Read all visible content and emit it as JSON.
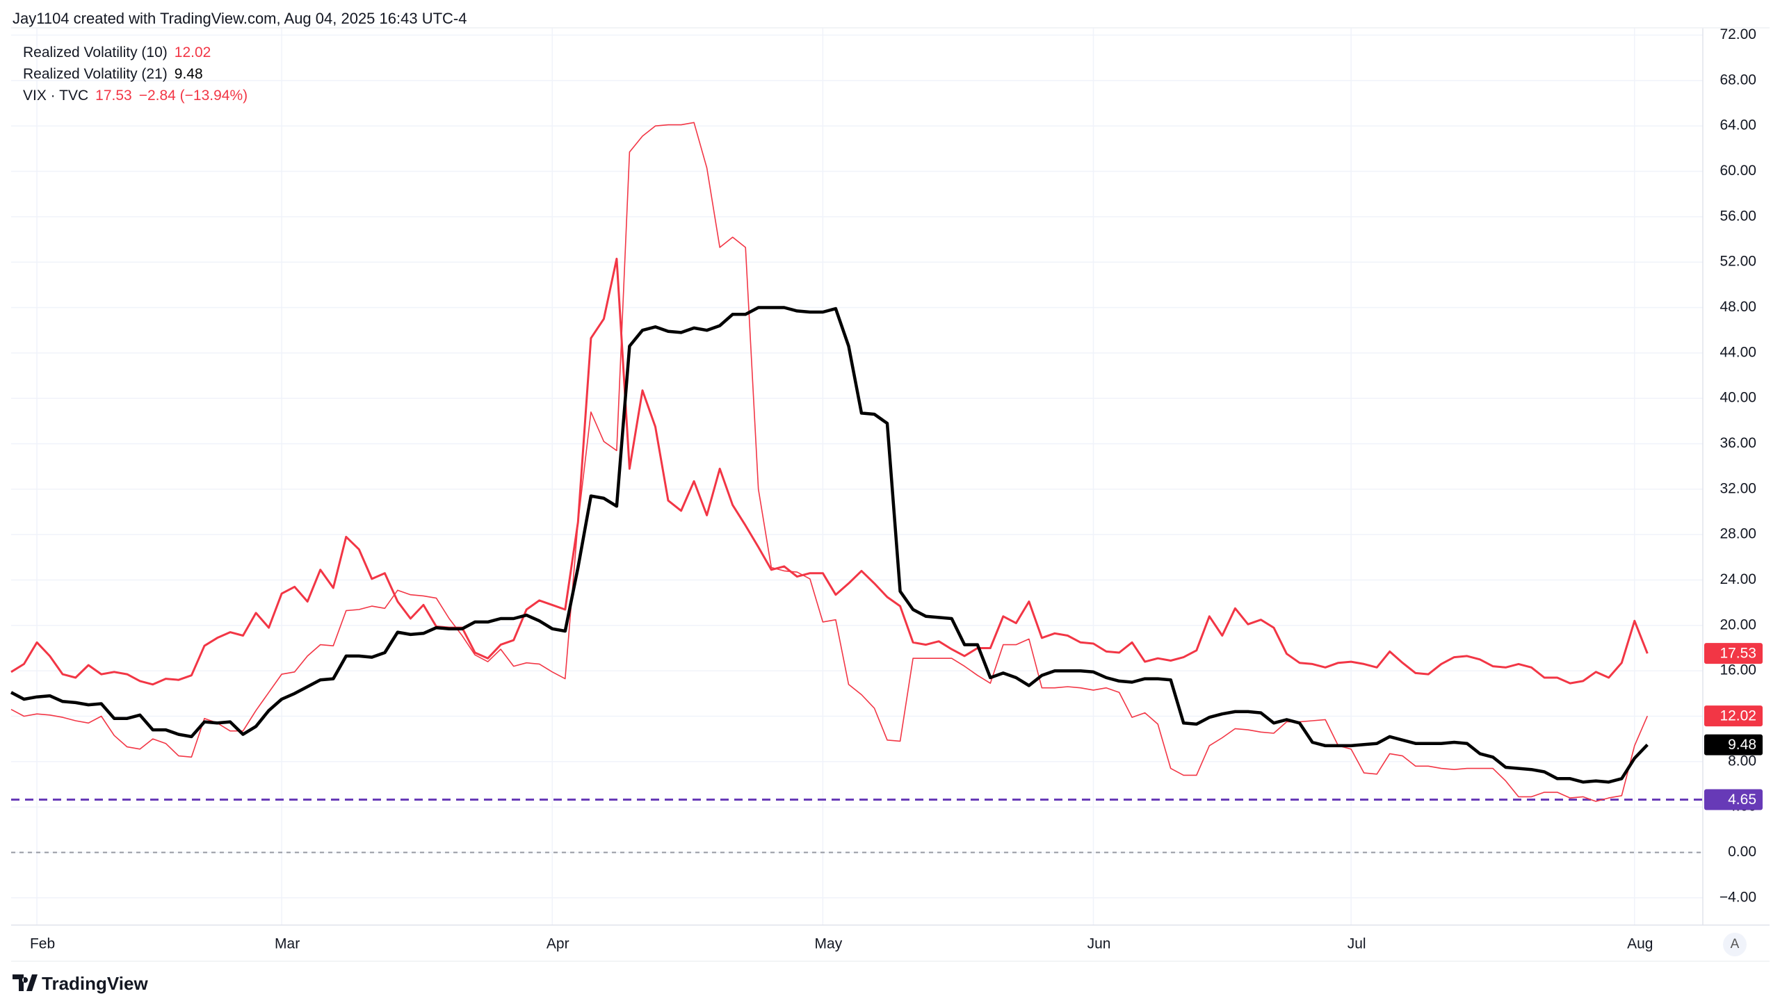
{
  "header": {
    "title": "Jay1104 created with TradingView.com, Aug 04, 2025 16:43 UTC-4"
  },
  "footer": {
    "brand": "TradingView"
  },
  "auto_scale_button": "A",
  "chart_data": {
    "type": "line",
    "categories": [
      null,
      null,
      "Feb",
      null,
      null,
      null,
      null,
      null,
      null,
      null,
      null,
      null,
      null,
      null,
      null,
      null,
      null,
      null,
      null,
      null,
      null,
      "Mar",
      null,
      null,
      null,
      null,
      null,
      null,
      null,
      null,
      null,
      null,
      null,
      null,
      null,
      null,
      null,
      null,
      null,
      null,
      null,
      null,
      "Apr",
      null,
      null,
      null,
      null,
      null,
      null,
      null,
      null,
      null,
      null,
      null,
      null,
      null,
      null,
      null,
      null,
      null,
      null,
      null,
      null,
      "May",
      null,
      null,
      null,
      null,
      null,
      null,
      null,
      null,
      null,
      null,
      null,
      null,
      null,
      null,
      null,
      null,
      null,
      null,
      null,
      null,
      "Jun",
      null,
      null,
      null,
      null,
      null,
      null,
      null,
      null,
      null,
      null,
      null,
      null,
      null,
      null,
      null,
      null,
      null,
      null,
      null,
      "Jul",
      null,
      null,
      null,
      null,
      null,
      null,
      null,
      null,
      null,
      null,
      null,
      null,
      null,
      null,
      null,
      null,
      null,
      null,
      null,
      null,
      null,
      "Aug",
      null
    ],
    "series": [
      {
        "name": "Realized Volatility (10)",
        "color": "#f23645",
        "values": [
          12.6,
          12.0,
          12.2,
          12.1,
          11.9,
          11.6,
          11.4,
          12.0,
          10.3,
          9.3,
          9.1,
          10.0,
          9.6,
          8.5,
          8.4,
          11.8,
          11.4,
          10.7,
          10.7,
          12.5,
          14.1,
          15.7,
          15.9,
          17.3,
          18.3,
          18.2,
          21.3,
          21.4,
          21.7,
          21.5,
          23.1,
          22.7,
          22.6,
          22.4,
          20.6,
          19.1,
          17.4,
          16.8,
          17.9,
          16.4,
          16.7,
          16.6,
          15.9,
          15.3,
          29.1,
          38.8,
          36.2,
          35.4,
          61.7,
          63.1,
          64.0,
          64.1,
          64.1,
          64.3,
          60.3,
          53.3,
          54.2,
          53.3,
          32.0,
          25.1,
          24.8,
          24.7,
          24.1,
          20.3,
          20.5,
          14.8,
          13.9,
          12.7,
          9.9,
          9.8,
          17.1,
          17.1,
          17.1,
          17.1,
          16.4,
          15.6,
          14.9,
          18.3,
          18.3,
          18.8,
          14.5,
          14.5,
          14.6,
          14.5,
          14.3,
          14.5,
          14.1,
          11.9,
          12.3,
          11.3,
          7.4,
          6.8,
          6.8,
          9.4,
          10.1,
          10.9,
          10.8,
          10.6,
          10.5,
          11.5,
          11.5,
          11.6,
          11.7,
          9.4,
          9.1,
          7.0,
          6.9,
          8.7,
          8.5,
          7.6,
          7.6,
          7.4,
          7.3,
          7.4,
          7.4,
          7.4,
          6.3,
          4.9,
          4.9,
          5.3,
          5.3,
          4.8,
          4.9,
          4.5,
          4.8,
          5.0,
          9.4,
          12.02
        ]
      },
      {
        "name": "Realized Volatility (21)",
        "color": "#000000",
        "values": [
          14.1,
          13.5,
          13.7,
          13.8,
          13.3,
          13.2,
          13.0,
          13.1,
          11.8,
          11.8,
          12.1,
          10.8,
          10.8,
          10.4,
          10.2,
          11.5,
          11.4,
          11.5,
          10.4,
          11.1,
          12.5,
          13.5,
          14.0,
          14.6,
          15.2,
          15.3,
          17.3,
          17.3,
          17.2,
          17.6,
          19.4,
          19.2,
          19.3,
          19.8,
          19.7,
          19.7,
          20.3,
          20.3,
          20.6,
          20.6,
          20.9,
          20.4,
          19.7,
          19.5,
          25.1,
          31.4,
          31.2,
          30.5,
          44.6,
          46.0,
          46.3,
          45.9,
          45.8,
          46.2,
          46.0,
          46.4,
          47.4,
          47.4,
          48.0,
          48.0,
          48.0,
          47.7,
          47.6,
          47.6,
          47.9,
          44.6,
          38.7,
          38.6,
          37.8,
          23.0,
          21.4,
          20.8,
          20.7,
          20.6,
          18.3,
          18.3,
          15.4,
          15.8,
          15.4,
          14.7,
          15.6,
          16.0,
          16.0,
          16.0,
          15.9,
          15.4,
          15.1,
          15.0,
          15.3,
          15.3,
          15.2,
          11.4,
          11.3,
          11.9,
          12.2,
          12.4,
          12.4,
          12.3,
          11.4,
          11.7,
          11.4,
          9.7,
          9.4,
          9.4,
          9.4,
          9.5,
          9.6,
          10.2,
          9.9,
          9.6,
          9.6,
          9.6,
          9.7,
          9.6,
          8.7,
          8.4,
          7.5,
          7.4,
          7.3,
          7.1,
          6.5,
          6.5,
          6.2,
          6.3,
          6.2,
          6.5,
          8.3,
          9.48
        ]
      },
      {
        "name": "VIX · TVC",
        "color": "#f23645",
        "change": "−2.84 (−13.94%)",
        "values": [
          15.9,
          16.6,
          18.5,
          17.3,
          15.7,
          15.4,
          16.5,
          15.7,
          15.9,
          15.7,
          15.1,
          14.8,
          15.3,
          15.2,
          15.6,
          18.2,
          18.9,
          19.4,
          19.1,
          21.1,
          19.8,
          22.8,
          23.4,
          22.1,
          24.9,
          23.3,
          27.8,
          26.7,
          24.1,
          24.6,
          22.1,
          20.6,
          21.8,
          19.9,
          19.8,
          19.8,
          17.6,
          17.1,
          18.3,
          18.7,
          21.4,
          22.2,
          21.8,
          21.4,
          29.1,
          45.3,
          47.0,
          52.3,
          33.8,
          40.7,
          37.5,
          31.0,
          30.1,
          32.7,
          29.7,
          33.8,
          30.6,
          28.8,
          26.9,
          24.9,
          25.2,
          24.3,
          24.6,
          24.6,
          22.7,
          23.7,
          24.8,
          23.7,
          22.5,
          21.7,
          18.5,
          18.3,
          18.6,
          17.9,
          17.3,
          18.0,
          18.0,
          20.8,
          20.2,
          22.1,
          18.9,
          19.3,
          19.1,
          18.5,
          18.4,
          17.7,
          17.6,
          18.5,
          16.8,
          17.1,
          16.9,
          17.2,
          17.8,
          20.8,
          19.1,
          21.5,
          20.1,
          20.5,
          19.8,
          17.5,
          16.7,
          16.6,
          16.3,
          16.7,
          16.8,
          16.6,
          16.3,
          17.7,
          16.7,
          15.8,
          15.7,
          16.6,
          17.2,
          17.3,
          17.0,
          16.4,
          16.3,
          16.6,
          16.3,
          15.4,
          15.4,
          14.9,
          15.1,
          15.9,
          15.4,
          16.7,
          20.4,
          17.53
        ]
      }
    ],
    "hlines": [
      {
        "value": 4.65,
        "color": "#673ab7"
      },
      {
        "value": 0,
        "color": "#9598a1"
      }
    ],
    "ylim": [
      -6.4,
      72.4
    ],
    "yticks": [
      {
        "value": -4,
        "label": "−4.00"
      },
      {
        "value": 0,
        "label": "0.00"
      },
      {
        "value": 4,
        "label": "4.00"
      },
      {
        "value": 8,
        "label": "8.00"
      },
      {
        "value": 12,
        "label": "12.00"
      },
      {
        "value": 16,
        "label": "16.00"
      },
      {
        "value": 20,
        "label": "20.00"
      },
      {
        "value": 24,
        "label": "24.00"
      },
      {
        "value": 28,
        "label": "28.00"
      },
      {
        "value": 32,
        "label": "32.00"
      },
      {
        "value": 36,
        "label": "36.00"
      },
      {
        "value": 40,
        "label": "40.00"
      },
      {
        "value": 44,
        "label": "44.00"
      },
      {
        "value": 48,
        "label": "48.00"
      },
      {
        "value": 52,
        "label": "52.00"
      },
      {
        "value": 56,
        "label": "56.00"
      },
      {
        "value": 60,
        "label": "60.00"
      },
      {
        "value": 64,
        "label": "64.00"
      },
      {
        "value": 68,
        "label": "68.00"
      },
      {
        "value": 72,
        "label": "72.00"
      }
    ],
    "grid": true
  }
}
